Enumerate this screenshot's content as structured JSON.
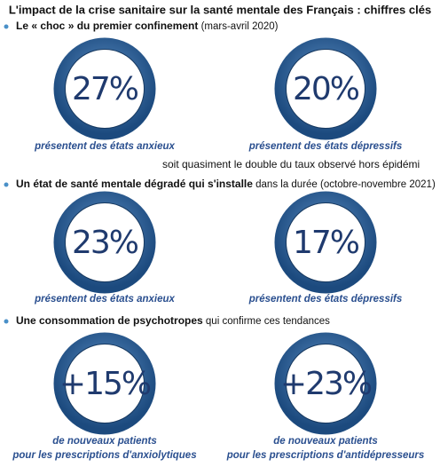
{
  "title": "L'impact de la crise sanitaire sur la santé mentale des Français : chiffres clés",
  "sections": [
    {
      "heading_bold": "Le « choc » du premier confinement",
      "heading_rest": " (mars-avril 2020)",
      "items": [
        {
          "value": "27%",
          "caption": [
            "présentent des états anxieux"
          ]
        },
        {
          "value": "20%",
          "caption": [
            "présentent des états dépressifs"
          ]
        }
      ],
      "note": "soit quasiment le double du taux observé hors épidémi"
    },
    {
      "heading_bold": "Un état de santé mentale dégradé qui s'installe",
      "heading_rest": " dans la durée (octobre-novembre 2021)",
      "items": [
        {
          "value": "23%",
          "caption": [
            "présentent des états anxieux"
          ]
        },
        {
          "value": "17%",
          "caption": [
            "présentent des états dépressifs"
          ]
        }
      ]
    },
    {
      "heading_bold": "Une consommation de psychotropes",
      "heading_rest": " qui confirme ces tendances",
      "items": [
        {
          "value": "+15%",
          "caption": [
            "de nouveaux patients",
            "pour les prescriptions d'anxiolytiques"
          ]
        },
        {
          "value": "+23%",
          "caption": [
            "de nouveaux patients",
            "pour les prescriptions d'antidépresseurs"
          ]
        }
      ]
    }
  ]
}
